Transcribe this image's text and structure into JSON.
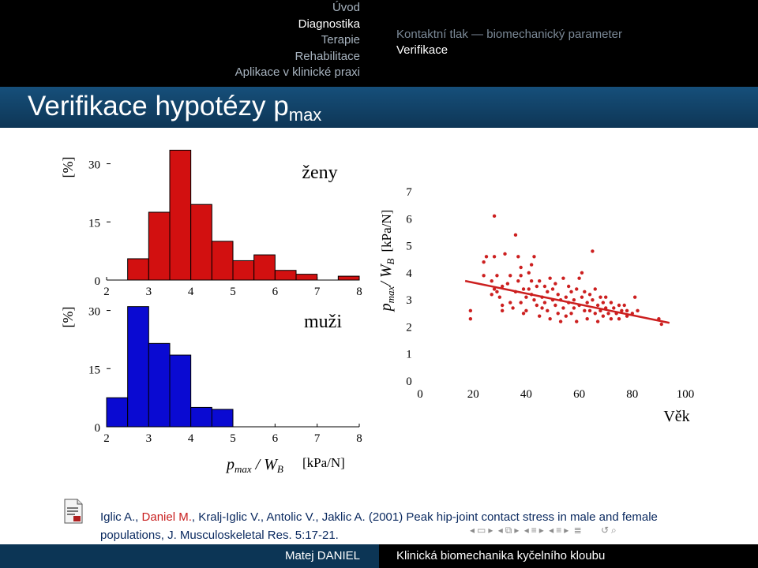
{
  "nav": {
    "sections": [
      "Úvod",
      "Diagnostika",
      "Terapie",
      "Rehabilitace",
      "Aplikace v klinické praxi"
    ],
    "current_section": "Diagnostika",
    "subsections": [
      "Kontaktní tlak — biomechanický parameter",
      "Verifikace"
    ],
    "current_subsection": "Verifikace"
  },
  "slide": {
    "title_text": "Verifikace hypotézy p",
    "title_sub": "max"
  },
  "chart_data": [
    {
      "type": "bar",
      "title": "ženy",
      "ylabel": "[%]",
      "x_ticks": [
        "2",
        "3",
        "4",
        "5",
        "6",
        "7",
        "8"
      ],
      "y_ticks": [
        "0",
        "15",
        "30"
      ],
      "bin_width": 0.5,
      "bins_start": [
        2.5,
        3.0,
        3.5,
        4.0,
        4.5,
        5.0,
        5.5,
        6.0,
        6.5,
        7.5
      ],
      "values": [
        5.5,
        17.5,
        33.5,
        19.5,
        10,
        5,
        6.5,
        2.5,
        1.5,
        1
      ],
      "ylim": [
        0,
        35
      ],
      "color": "#d21010"
    },
    {
      "type": "bar",
      "title": "muži",
      "ylabel": "[%]",
      "xlabel_main": "p",
      "xlabel_sub1": "max",
      "xlabel_mid": " / W",
      "xlabel_sub2": "B",
      "xlabel_unit": "[kPa/N]",
      "x_ticks": [
        "2",
        "3",
        "4",
        "5",
        "6",
        "7",
        "8"
      ],
      "y_ticks": [
        "0",
        "15",
        "30"
      ],
      "bin_width": 0.5,
      "bins_start": [
        2.0,
        2.5,
        3.0,
        3.5,
        4.0,
        4.5
      ],
      "values": [
        7.5,
        31,
        21.5,
        18.5,
        5,
        4.5
      ],
      "ylim": [
        0,
        35
      ],
      "color": "#0a0ad2"
    },
    {
      "type": "scatter",
      "ylabel_main": "p",
      "ylabel_sub1": "max",
      "ylabel_mid": "/ W",
      "ylabel_sub2": "B",
      "ylabel_unit": "[kPa/N]",
      "xlabel": "Věk",
      "x_ticks": [
        "0",
        "20",
        "40",
        "60",
        "80",
        "100"
      ],
      "y_ticks": [
        "0",
        "1",
        "2",
        "3",
        "4",
        "5",
        "6",
        "7"
      ],
      "xlim": [
        0,
        100
      ],
      "ylim": [
        0,
        7
      ],
      "trend": [
        [
          17,
          3.7
        ],
        [
          94,
          2.15
        ]
      ],
      "color": "#cc1f1f",
      "points": [
        [
          19,
          2.6
        ],
        [
          19,
          2.3
        ],
        [
          24,
          4.4
        ],
        [
          24,
          3.9
        ],
        [
          25,
          4.6
        ],
        [
          27,
          3.2
        ],
        [
          27,
          3.7
        ],
        [
          28,
          3.4
        ],
        [
          28,
          6.1
        ],
        [
          28,
          4.6
        ],
        [
          29,
          3.9
        ],
        [
          29,
          3.3
        ],
        [
          30,
          3.1
        ],
        [
          31,
          2.8
        ],
        [
          31,
          3.5
        ],
        [
          31,
          2.6
        ],
        [
          32,
          4.7
        ],
        [
          33,
          3.6
        ],
        [
          34,
          2.9
        ],
        [
          34,
          3.9
        ],
        [
          35,
          2.7
        ],
        [
          36,
          3.3
        ],
        [
          36,
          5.4
        ],
        [
          37,
          3.7
        ],
        [
          37,
          4.6
        ],
        [
          38,
          4.2
        ],
        [
          38,
          2.9
        ],
        [
          38,
          3.9
        ],
        [
          39,
          3.4
        ],
        [
          39,
          2.5
        ],
        [
          40,
          3.1
        ],
        [
          40,
          2.6
        ],
        [
          41,
          4.0
        ],
        [
          41,
          3.4
        ],
        [
          42,
          3.2
        ],
        [
          42,
          4.3
        ],
        [
          42,
          3.7
        ],
        [
          43,
          3.0
        ],
        [
          43,
          4.6
        ],
        [
          44,
          2.8
        ],
        [
          44,
          3.5
        ],
        [
          45,
          3.7
        ],
        [
          45,
          2.4
        ],
        [
          46,
          3.1
        ],
        [
          46,
          2.7
        ],
        [
          47,
          3.5
        ],
        [
          47,
          2.9
        ],
        [
          48,
          3.3
        ],
        [
          48,
          2.6
        ],
        [
          49,
          3.8
        ],
        [
          49,
          2.3
        ],
        [
          50,
          3.0
        ],
        [
          50,
          3.4
        ],
        [
          51,
          2.8
        ],
        [
          51,
          3.6
        ],
        [
          52,
          2.5
        ],
        [
          52,
          3.2
        ],
        [
          53,
          3.0
        ],
        [
          53,
          2.2
        ],
        [
          54,
          3.8
        ],
        [
          54,
          2.7
        ],
        [
          55,
          3.1
        ],
        [
          55,
          2.4
        ],
        [
          56,
          3.5
        ],
        [
          56,
          2.9
        ],
        [
          57,
          3.3
        ],
        [
          57,
          2.5
        ],
        [
          58,
          3.0
        ],
        [
          58,
          2.7
        ],
        [
          59,
          3.4
        ],
        [
          59,
          2.2
        ],
        [
          60,
          3.8
        ],
        [
          60,
          2.8
        ],
        [
          61,
          3.1
        ],
        [
          61,
          4.0
        ],
        [
          62,
          2.6
        ],
        [
          62,
          3.3
        ],
        [
          63,
          2.9
        ],
        [
          63,
          2.3
        ],
        [
          64,
          3.2
        ],
        [
          64,
          2.6
        ],
        [
          65,
          4.8
        ],
        [
          65,
          3.0
        ],
        [
          66,
          3.4
        ],
        [
          66,
          2.5
        ],
        [
          67,
          2.8
        ],
        [
          67,
          2.2
        ],
        [
          68,
          3.1
        ],
        [
          68,
          2.6
        ],
        [
          69,
          2.9
        ],
        [
          69,
          2.4
        ],
        [
          70,
          3.1
        ],
        [
          70,
          2.7
        ],
        [
          71,
          2.5
        ],
        [
          72,
          2.9
        ],
        [
          72,
          2.3
        ],
        [
          73,
          2.7
        ],
        [
          74,
          2.5
        ],
        [
          75,
          2.8
        ],
        [
          75,
          2.3
        ],
        [
          76,
          2.6
        ],
        [
          77,
          2.8
        ],
        [
          78,
          2.4
        ],
        [
          78,
          2.6
        ],
        [
          80,
          2.5
        ],
        [
          81,
          3.1
        ],
        [
          82,
          2.6
        ],
        [
          90,
          2.3
        ],
        [
          91,
          2.1
        ]
      ]
    }
  ],
  "reference": {
    "part1": "Iglic A., ",
    "part2_red": "Daniel M.",
    "part3": ", Kralj-Iglic V., Antolic V., Jaklic A. (2001) Peak hip-joint contact stress in male and female populations, J. Musculoskeletal Res. 5:17-21."
  },
  "footer": {
    "author": "Matej DANIEL",
    "course": "Klinická biomechanika kyčelního kloubu"
  },
  "beamer_nav_icons": [
    "left-arrow-icon",
    "frame-icon",
    "right-arrow-icon",
    "left-arrow-icon",
    "subsection-icon",
    "right-arrow-icon",
    "left-arrow-icon",
    "section-icon",
    "right-arrow-icon",
    "left-arrow-icon",
    "presentation-icon",
    "right-arrow-icon",
    "align-icon",
    "undo-icon",
    "search-icon"
  ]
}
